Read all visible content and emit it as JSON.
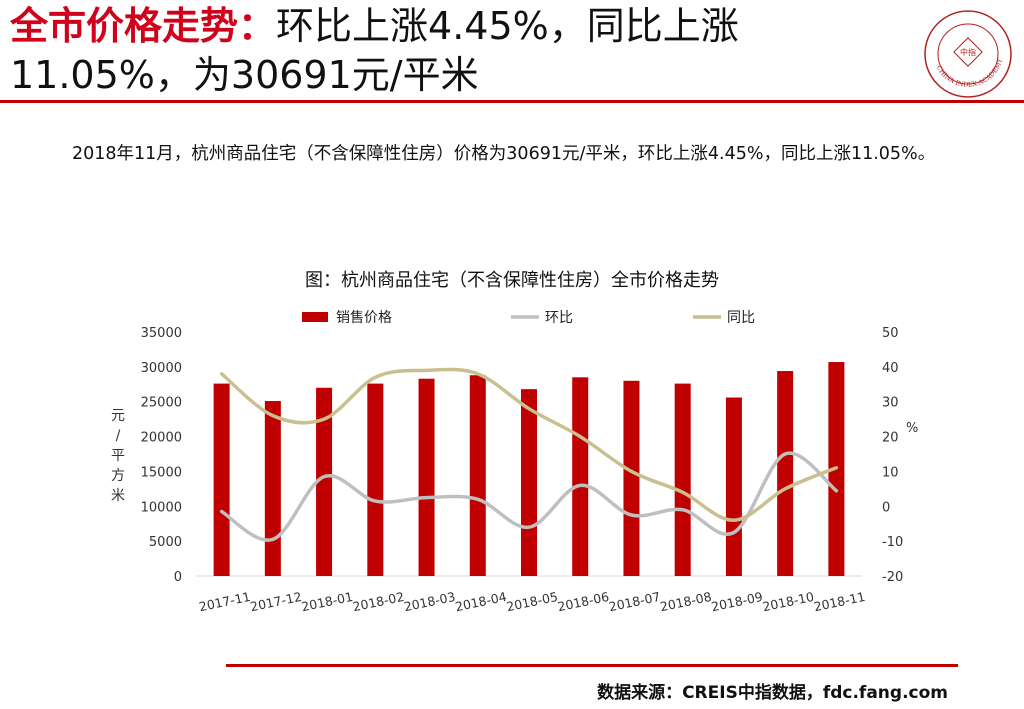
{
  "header": {
    "title_highlight": "全市价格走势：",
    "title_rest": "环比上涨4.45%，同比上涨11.05%，为30691元/平米",
    "logo_text": "CHINA INDEX ACADEMY",
    "logo_center": "中指"
  },
  "paragraph": "2018年11月，杭州商品住宅（不含保障性住房）价格为30691元/平米，环比上涨4.45%，同比上涨11.05%。",
  "chart_data": {
    "type": "bar",
    "title": "图：杭州商品住宅（不含保障性住房）全市价格走势",
    "categories": [
      "2017-11",
      "2017-12",
      "2018-01",
      "2018-02",
      "2018-03",
      "2018-04",
      "2018-05",
      "2018-06",
      "2018-07",
      "2018-08",
      "2018-09",
      "2018-10",
      "2018-11"
    ],
    "series": [
      {
        "name": "销售价格",
        "type": "bar",
        "axis": "left",
        "color": "#c00000",
        "values": [
          27600,
          25100,
          27000,
          27600,
          28300,
          28800,
          26800,
          28500,
          28000,
          27600,
          25600,
          29400,
          30691
        ]
      },
      {
        "name": "环比",
        "type": "line",
        "axis": "right",
        "color": "#bfbfbf",
        "values": [
          -1.5,
          -9.5,
          8.5,
          1.5,
          2.5,
          2,
          -6,
          6,
          -2.5,
          -1,
          -7.5,
          15,
          4.45
        ]
      },
      {
        "name": "同比",
        "type": "line",
        "axis": "right",
        "color": "#c9bf8f",
        "values": [
          38,
          26,
          25,
          37,
          39,
          38,
          28,
          20,
          10,
          4,
          -4,
          5,
          11.05
        ]
      }
    ],
    "ylabel_left": "元/平方米",
    "ylabel_right": "%",
    "ylim_left": [
      0,
      35000
    ],
    "yticks_left": [
      0,
      5000,
      10000,
      15000,
      20000,
      25000,
      30000,
      35000
    ],
    "ylim_right": [
      -20,
      50
    ],
    "yticks_right": [
      -20,
      -10,
      0,
      10,
      20,
      30,
      40,
      50
    ],
    "legend_position": "top",
    "grid": false
  },
  "footer": {
    "source": "数据来源：CREIS中指数据，fdc.fang.com"
  }
}
